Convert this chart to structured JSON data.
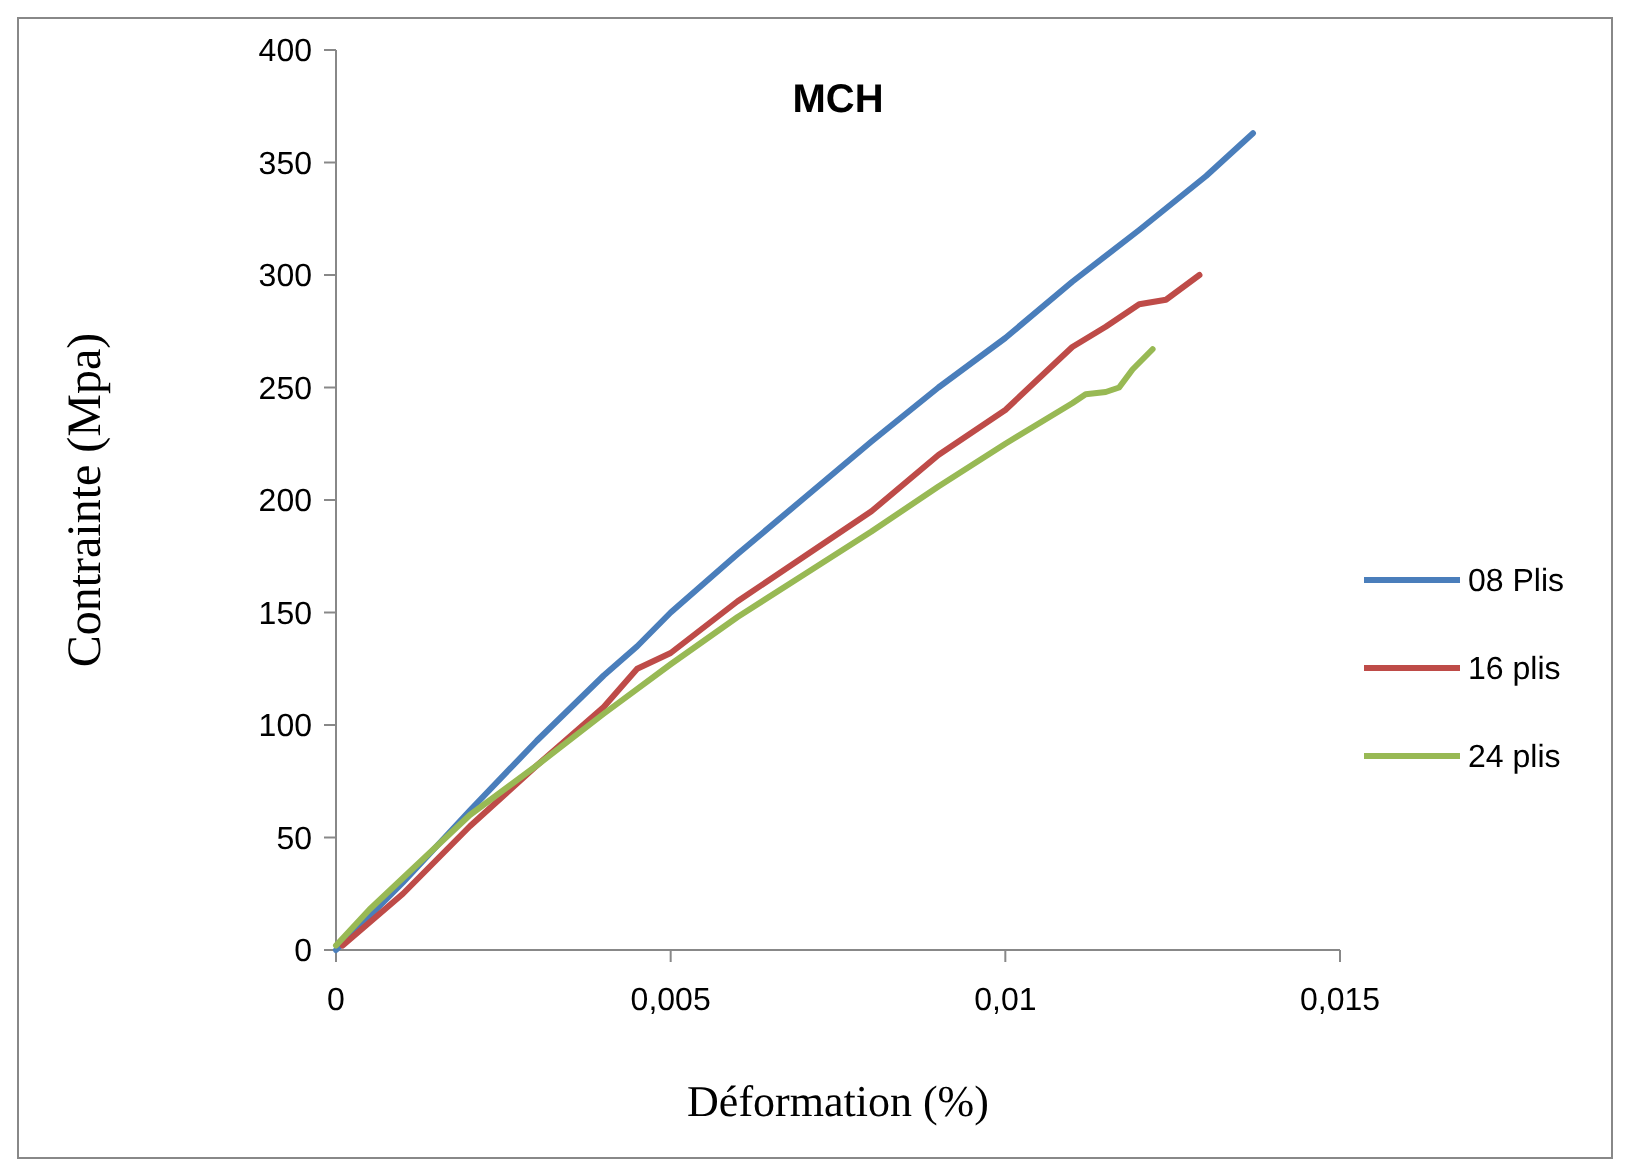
{
  "chart_data": {
    "type": "line",
    "title": "MCH",
    "xlabel": "Déformation (%)",
    "ylabel": "Contrainte (Mpa)",
    "xlim": [
      0,
      0.015
    ],
    "xticks": [
      {
        "value": 0,
        "label": "0"
      },
      {
        "value": 0.005,
        "label": "0,005"
      },
      {
        "value": 0.01,
        "label": "0,01"
      },
      {
        "value": 0.015,
        "label": "0,015"
      }
    ],
    "ylim": [
      0,
      400
    ],
    "yticks": [
      0,
      50,
      100,
      150,
      200,
      250,
      300,
      350,
      400
    ],
    "grid": false,
    "legend": "right",
    "marker": "none",
    "line_style": "solid",
    "series": [
      {
        "name": "08 Plis",
        "color": "#4a7ebb",
        "x": [
          0,
          0.001,
          0.002,
          0.003,
          0.004,
          0.0045,
          0.005,
          0.006,
          0.007,
          0.008,
          0.009,
          0.01,
          0.011,
          0.012,
          0.013,
          0.0137
        ],
        "values": [
          0,
          30,
          62,
          93,
          122,
          135,
          150,
          176,
          201,
          226,
          250,
          272,
          297,
          320,
          344,
          363
        ]
      },
      {
        "name": "16 plis",
        "color": "#be4b48",
        "x": [
          0.0001,
          0.001,
          0.002,
          0.003,
          0.004,
          0.0045,
          0.005,
          0.006,
          0.007,
          0.008,
          0.009,
          0.01,
          0.011,
          0.0115,
          0.012,
          0.0124,
          0.0129
        ],
        "values": [
          2,
          25,
          55,
          82,
          108,
          125,
          132,
          155,
          175,
          195,
          220,
          240,
          268,
          277,
          287,
          289,
          300
        ]
      },
      {
        "name": "24 plis",
        "color": "#98b954",
        "x": [
          0,
          0.0005,
          0.001,
          0.002,
          0.003,
          0.004,
          0.005,
          0.006,
          0.007,
          0.008,
          0.009,
          0.01,
          0.011,
          0.0112,
          0.0115,
          0.0117,
          0.0119,
          0.0122
        ],
        "values": [
          2,
          18,
          32,
          60,
          82,
          105,
          127,
          148,
          167,
          186,
          206,
          225,
          243,
          247,
          248,
          250,
          258,
          267
        ]
      }
    ]
  }
}
